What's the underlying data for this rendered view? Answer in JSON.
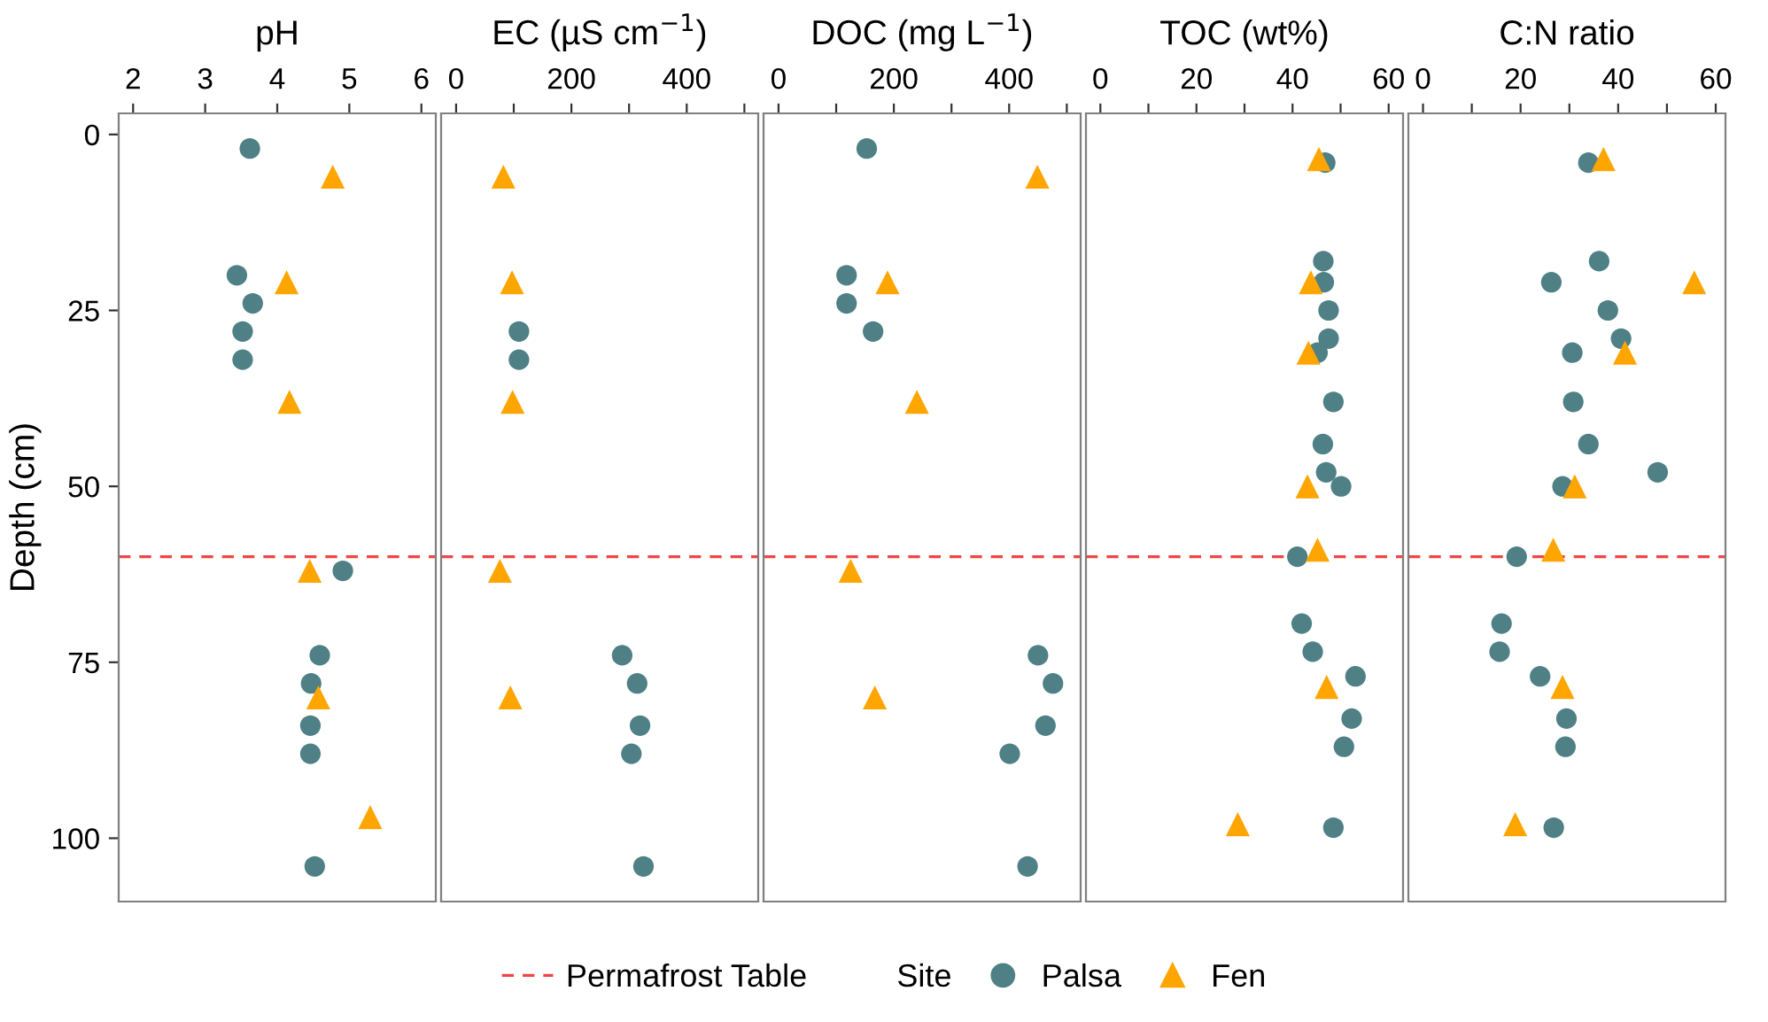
{
  "chart_data": [
    {
      "type": "scatter",
      "title": "pH",
      "ylabel": "Depth (cm)",
      "xlim": [
        1.8,
        6.2
      ],
      "xticks": [
        2,
        3,
        4,
        5,
        6
      ],
      "ylim": [
        109,
        -3
      ],
      "yticks": [
        0,
        25,
        50,
        75,
        100
      ],
      "grid": false,
      "legend": "bottom",
      "legend_title": "Site",
      "ref_lines": [
        {
          "axis": "y",
          "value": 60,
          "label": "Permafrost Table",
          "color": "#f04545",
          "line_style": "dashed"
        }
      ],
      "series": [
        {
          "name": "Palsa",
          "color": "#4e8086",
          "marker": "circle",
          "x": [
            3.62,
            3.44,
            3.66,
            3.52,
            3.52,
            4.91,
            4.59,
            4.47,
            4.46,
            4.46,
            4.52
          ],
          "values": [
            2,
            20,
            24,
            28,
            32,
            62,
            74,
            78,
            84,
            88,
            104
          ]
        },
        {
          "name": "Fen",
          "color": "#ffa500",
          "marker": "triangle",
          "x": [
            4.77,
            4.13,
            4.17,
            4.45,
            4.57,
            5.29
          ],
          "values": [
            6,
            21,
            38,
            62,
            80,
            97
          ]
        }
      ]
    },
    {
      "type": "scatter",
      "title": "EC (µS cm$^{−1}$)",
      "xlim": [
        -26,
        524
      ],
      "xticks": [
        0,
        {
          "value": 100,
          "label": null
        },
        200,
        {
          "value": 300,
          "label": null
        },
        400,
        {
          "value": 500,
          "label": null
        }
      ],
      "ylim": [
        109,
        -3
      ],
      "tick_labels": "x",
      "grid": false,
      "ref_lines": [
        {
          "axis": "y",
          "value": 60,
          "color": "#f04545",
          "line_style": "dashed"
        }
      ],
      "series": [
        {
          "color": "#4e8086",
          "marker": "circle",
          "x": [
            109,
            109,
            288,
            314,
            319,
            304,
            325
          ],
          "values": [
            28,
            32,
            74,
            78,
            84,
            88,
            104
          ]
        },
        {
          "color": "#ffa500",
          "marker": "triangle",
          "x": [
            82,
            97,
            98,
            76,
            94
          ],
          "values": [
            6,
            21,
            38,
            62,
            80
          ]
        }
      ]
    },
    {
      "type": "scatter",
      "title": "DOC (mg L$^{−1}$)",
      "xlim": [
        -26,
        524
      ],
      "xticks": [
        0,
        {
          "value": 100,
          "label": null
        },
        200,
        {
          "value": 300,
          "label": null
        },
        400,
        {
          "value": 500,
          "label": null
        }
      ],
      "ylim": [
        109,
        -3
      ],
      "tick_labels": "x",
      "grid": false,
      "ref_lines": [
        {
          "axis": "y",
          "value": 60,
          "color": "#f04545",
          "line_style": "dashed"
        }
      ],
      "series": [
        {
          "color": "#4e8086",
          "marker": "circle",
          "x": [
            153,
            118,
            118,
            164,
            450,
            476,
            463,
            401,
            432
          ],
          "values": [
            2,
            20,
            24,
            28,
            74,
            78,
            84,
            88,
            104
          ]
        },
        {
          "color": "#ffa500",
          "marker": "triangle",
          "x": [
            449,
            189,
            240,
            125,
            167
          ],
          "values": [
            6,
            21,
            38,
            62,
            80
          ]
        }
      ]
    },
    {
      "type": "scatter",
      "title": "TOC (wt%)",
      "xlim": [
        -3,
        63
      ],
      "xticks": [
        0,
        {
          "value": 10,
          "label": null
        },
        20,
        {
          "value": 30,
          "label": null
        },
        40,
        {
          "value": 50,
          "label": null
        },
        60
      ],
      "ylim": [
        109,
        -3
      ],
      "tick_labels": "x",
      "grid": false,
      "ref_lines": [
        {
          "axis": "y",
          "value": 60,
          "color": "#f04545",
          "line_style": "dashed"
        }
      ],
      "series": [
        {
          "color": "#4e8086",
          "marker": "circle",
          "x": [
            46.8,
            46.4,
            46.5,
            47.5,
            47.5,
            45.2,
            48.5,
            46.3,
            47,
            50.1,
            41,
            41.9,
            44.2,
            53.1,
            52.3,
            50.7,
            48.5
          ],
          "values": [
            4,
            18,
            21,
            25,
            29,
            31,
            38,
            44,
            48,
            50,
            60,
            69.5,
            73.5,
            77,
            83,
            87,
            98.5
          ]
        },
        {
          "color": "#ffa500",
          "marker": "triangle",
          "x": [
            45.5,
            43.8,
            43.3,
            43.1,
            45.2,
            47.1,
            28.6
          ],
          "values": [
            3.5,
            21,
            31,
            50,
            59,
            78.5,
            98
          ]
        }
      ]
    },
    {
      "type": "scatter",
      "title": "C:N ratio",
      "xlim": [
        -3,
        62
      ],
      "xticks": [
        0,
        {
          "value": 10,
          "label": null
        },
        20,
        {
          "value": 30,
          "label": null
        },
        40,
        {
          "value": 50,
          "label": null
        },
        60
      ],
      "ylim": [
        109,
        -3
      ],
      "tick_labels": "x",
      "grid": false,
      "ref_lines": [
        {
          "axis": "y",
          "value": 60,
          "color": "#f04545",
          "line_style": "dashed"
        }
      ],
      "series": [
        {
          "color": "#4e8086",
          "marker": "circle",
          "x": [
            33.9,
            36.1,
            26.3,
            37.9,
            40.6,
            30.6,
            30.8,
            33.9,
            48.1,
            28.6,
            19.2,
            16.1,
            15.7,
            24,
            29.4,
            29.2,
            26.8
          ],
          "values": [
            4,
            18,
            21,
            25,
            29,
            31,
            38,
            44,
            48,
            50,
            60,
            69.5,
            73.5,
            77,
            83,
            87,
            98.5
          ]
        },
        {
          "color": "#ffa500",
          "marker": "triangle",
          "x": [
            37,
            55.6,
            41.4,
            31.1,
            26.7,
            28.6,
            18.9
          ],
          "values": [
            3.5,
            21,
            31,
            50,
            59,
            78.5,
            98
          ]
        }
      ]
    }
  ]
}
